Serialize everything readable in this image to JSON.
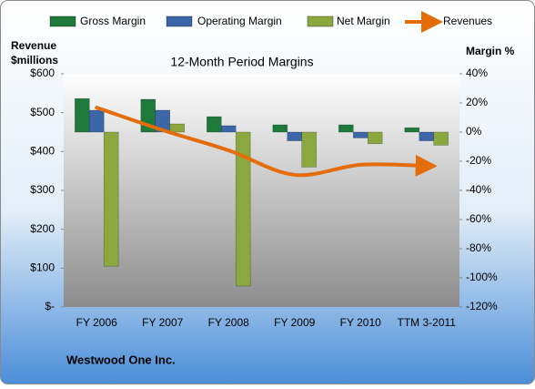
{
  "chart_data": {
    "type": "bar",
    "title": "12-Month Period Margins",
    "y_label": [
      "Revenue",
      "$millions"
    ],
    "y2_label": "Margin %",
    "footer": "Westwood One Inc.",
    "categories": [
      "FY 2006",
      "FY 2007",
      "FY 2008",
      "FY 2009",
      "FY 2010",
      "TTM 3-2011"
    ],
    "series": [
      {
        "name": "Gross Margin",
        "type": "bar",
        "axis": "y2",
        "color": "#1e7a3a",
        "values": [
          23,
          22.5,
          10.6,
          5,
          5,
          3
        ]
      },
      {
        "name": "Operating Margin",
        "type": "bar",
        "axis": "y2",
        "color": "#3c66a8",
        "values": [
          15,
          15,
          4.4,
          -6,
          -4,
          -6
        ]
      },
      {
        "name": "Net Margin",
        "type": "bar",
        "axis": "y2",
        "color": "#8aa83e",
        "values": [
          -92,
          5.6,
          -105.6,
          -24,
          -8,
          -9
        ]
      },
      {
        "name": "Revenues",
        "type": "line",
        "axis": "y",
        "color": "#e46c0a",
        "values": [
          513,
          455,
          403,
          340,
          366,
          363
        ]
      }
    ],
    "ylim": [
      0,
      600
    ],
    "yticks": [
      {
        "value": 0,
        "label": "$-"
      },
      {
        "value": 100,
        "label": "$100"
      },
      {
        "value": 200,
        "label": "$200"
      },
      {
        "value": 300,
        "label": "$300"
      },
      {
        "value": 400,
        "label": "$400"
      },
      {
        "value": 500,
        "label": "$500"
      },
      {
        "value": 600,
        "label": "$600"
      }
    ],
    "y2lim": [
      -120,
      40
    ],
    "y2ticks": [
      {
        "value": -120,
        "label": "-120%"
      },
      {
        "value": -100,
        "label": "-100%"
      },
      {
        "value": -80,
        "label": "-80%"
      },
      {
        "value": -60,
        "label": "-60%"
      },
      {
        "value": -40,
        "label": "-40%"
      },
      {
        "value": -20,
        "label": "-20%"
      },
      {
        "value": 0,
        "label": "0%"
      },
      {
        "value": 20,
        "label": "20%"
      },
      {
        "value": 40,
        "label": "40%"
      }
    ],
    "legend": "top"
  }
}
